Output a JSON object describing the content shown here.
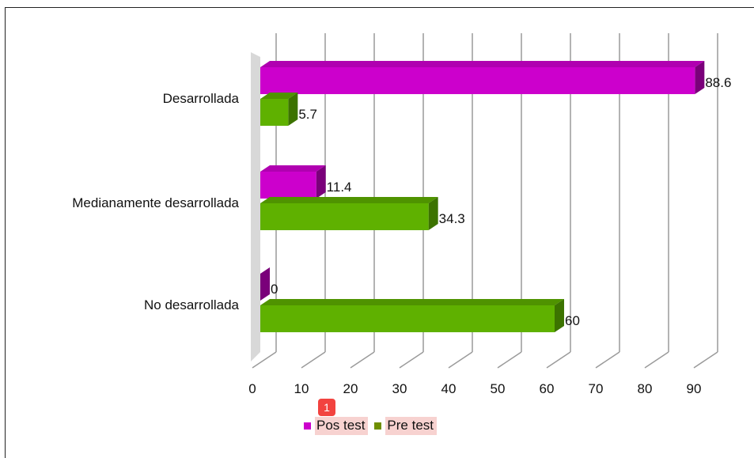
{
  "chart_data": {
    "type": "bar",
    "orientation": "horizontal",
    "categories": [
      "Desarrollada",
      "Medianamente desarrollada",
      "No desarrollada"
    ],
    "series": [
      {
        "name": "Pos test",
        "values": [
          88.6,
          11.4,
          0
        ],
        "labels": [
          "88.6",
          "11.4",
          "0"
        ],
        "color": "#cc00cc"
      },
      {
        "name": "Pre test",
        "values": [
          5.7,
          34.3,
          60
        ],
        "labels": [
          "5.7",
          "34.3",
          "60"
        ],
        "color": "#5fb100"
      }
    ],
    "xlim": [
      0,
      90
    ],
    "ticks": [
      "0",
      "10",
      "20",
      "30",
      "40",
      "50",
      "60",
      "70",
      "80",
      "90"
    ],
    "grid": true,
    "legend_position": "bottom"
  },
  "badge": "1"
}
